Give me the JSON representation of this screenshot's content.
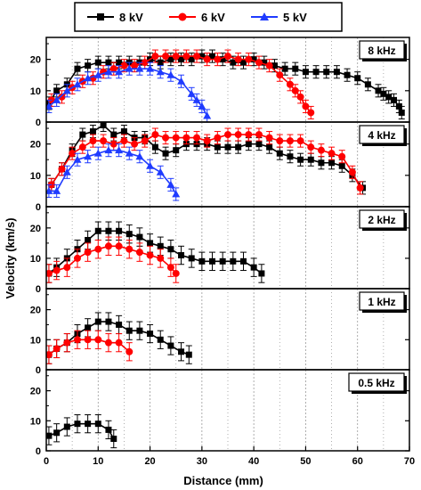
{
  "chart_data": {
    "type": "line",
    "xlabel": "Distance (mm)",
    "ylabel": "Velocity (km/s)",
    "xlim": [
      0,
      70
    ],
    "xticks": [
      0,
      10,
      20,
      30,
      40,
      50,
      60,
      70
    ],
    "ylim": [
      0,
      27
    ],
    "yticks": [
      0,
      10,
      20
    ],
    "grid": "vertical dotted lines every 5 mm",
    "legend": {
      "placement": "top",
      "entries": [
        {
          "label": "8 kV",
          "color": "#000000",
          "marker": "square"
        },
        {
          "label": "6 kV",
          "color": "#ff0000",
          "marker": "circle"
        },
        {
          "label": "5 kV",
          "color": "#1f3bff",
          "marker": "triangle"
        }
      ]
    },
    "panels": [
      {
        "label": "8 kHz",
        "series": [
          {
            "name": "8 kV",
            "x": [
              0.5,
              2,
              4,
              6,
              8,
              10,
              12,
              14,
              16,
              18,
              20,
              22,
              24,
              26,
              28,
              30,
              32,
              34,
              36,
              38,
              40,
              42,
              44,
              46,
              48,
              50,
              52,
              54,
              56,
              58,
              60,
              62,
              64,
              65,
              66,
              67,
              68,
              68.5
            ],
            "y": [
              6,
              10,
              12,
              17,
              18,
              19,
              19,
              19,
              19,
              19,
              20,
              19,
              20,
              20,
              20,
              21,
              21,
              20,
              19,
              19,
              20,
              19,
              18,
              17,
              17,
              16,
              16,
              16,
              16,
              15,
              14,
              12,
              10,
              9,
              8,
              7,
              5,
              3
            ],
            "err": 2
          },
          {
            "name": "6 kV",
            "x": [
              1,
              3,
              5,
              7,
              9,
              11,
              13,
              15,
              17,
              19,
              21,
              23,
              25,
              27,
              29,
              31,
              33,
              35,
              37,
              39,
              41,
              43,
              45,
              47,
              48,
              49,
              50,
              51
            ],
            "y": [
              7,
              8,
              11,
              13,
              14,
              16,
              17,
              18,
              18,
              19,
              21,
              21,
              21,
              21,
              21,
              20,
              20,
              21,
              20,
              20,
              19,
              18,
              15,
              12,
              10,
              8,
              5,
              3
            ],
            "err": 2
          },
          {
            "name": "5 kV",
            "x": [
              0.5,
              2,
              4,
              6,
              8,
              10,
              12,
              14,
              16,
              18,
              20,
              22,
              24,
              26,
              28,
              29,
              30,
              31
            ],
            "y": [
              5,
              7,
              10,
              12,
              14,
              15,
              16,
              16,
              17,
              17,
              17,
              16,
              15,
              13,
              9,
              7,
              5,
              2
            ],
            "err": 2
          }
        ]
      },
      {
        "label": "4 kHz",
        "series": [
          {
            "name": "8 kV",
            "x": [
              1,
              3,
              5,
              7,
              9,
              11,
              13,
              15,
              17,
              19,
              21,
              23,
              25,
              27,
              29,
              31,
              33,
              35,
              37,
              39,
              41,
              43,
              45,
              47,
              49,
              51,
              53,
              55,
              57,
              59,
              61
            ],
            "y": [
              7,
              12,
              18,
              23,
              24,
              26,
              23,
              24,
              22,
              22,
              19,
              17,
              18,
              20,
              20,
              20,
              19,
              19,
              19,
              20,
              20,
              19,
              17,
              16,
              15,
              15,
              14,
              14,
              13,
              10,
              6
            ],
            "err": 2
          },
          {
            "name": "6 kV",
            "x": [
              1,
              3,
              5,
              7,
              9,
              11,
              13,
              15,
              17,
              19,
              21,
              23,
              25,
              27,
              29,
              31,
              33,
              35,
              37,
              39,
              41,
              43,
              45,
              47,
              49,
              51,
              53,
              55,
              57,
              59,
              60.5
            ],
            "y": [
              7,
              12,
              17,
              19,
              21,
              21,
              20,
              21,
              20,
              21,
              23,
              22,
              22,
              22,
              22,
              21,
              22,
              23,
              23,
              23,
              23,
              22,
              21,
              21,
              21,
              19,
              18,
              17,
              16,
              11,
              6
            ],
            "err": 2
          },
          {
            "name": "5 kV",
            "x": [
              0.5,
              2,
              4,
              6,
              8,
              10,
              12,
              14,
              16,
              18,
              20,
              22,
              24,
              25
            ],
            "y": [
              5,
              5,
              11,
              15,
              16,
              17,
              18,
              18,
              17,
              16,
              13,
              11,
              7,
              4
            ],
            "err": 2
          }
        ]
      },
      {
        "label": "2 kHz",
        "series": [
          {
            "name": "8 kV",
            "x": [
              0.5,
              2,
              4,
              6,
              8,
              10,
              12,
              14,
              16,
              18,
              20,
              22,
              24,
              26,
              28,
              30,
              32,
              34,
              36,
              38,
              40,
              41.5
            ],
            "y": [
              5,
              7,
              10,
              13,
              16,
              19,
              19,
              19,
              18,
              17,
              15,
              14,
              13,
              11,
              10,
              9,
              9,
              9,
              9,
              9,
              7,
              5
            ],
            "err": 3
          },
          {
            "name": "6 kV",
            "x": [
              0.5,
              2,
              4,
              6,
              8,
              10,
              12,
              14,
              16,
              18,
              20,
              22,
              24,
              25
            ],
            "y": [
              5,
              6,
              7,
              10,
              12,
              13,
              14,
              14,
              13,
              12,
              11,
              10,
              7,
              5
            ],
            "err": 3
          }
        ]
      },
      {
        "label": "1 kHz",
        "series": [
          {
            "name": "8 kV",
            "x": [
              0.5,
              2,
              4,
              6,
              8,
              10,
              12,
              14,
              16,
              18,
              20,
              22,
              24,
              26,
              27.5
            ],
            "y": [
              5,
              7,
              9,
              12,
              14,
              16,
              16,
              15,
              13,
              13,
              12,
              10,
              8,
              6,
              5
            ],
            "err": 3
          },
          {
            "name": "6 kV",
            "x": [
              0.5,
              2,
              4,
              6,
              8,
              10,
              12,
              14,
              16
            ],
            "y": [
              5,
              7,
              9,
              10,
              10,
              10,
              9,
              9,
              6
            ],
            "err": 3
          }
        ]
      },
      {
        "label": "0.5 kHz",
        "series": [
          {
            "name": "8 kV",
            "x": [
              0.5,
              2,
              4,
              6,
              8,
              10,
              12,
              13
            ],
            "y": [
              5,
              6,
              8,
              9,
              9,
              9,
              7,
              4
            ],
            "err": 3
          }
        ]
      }
    ]
  }
}
